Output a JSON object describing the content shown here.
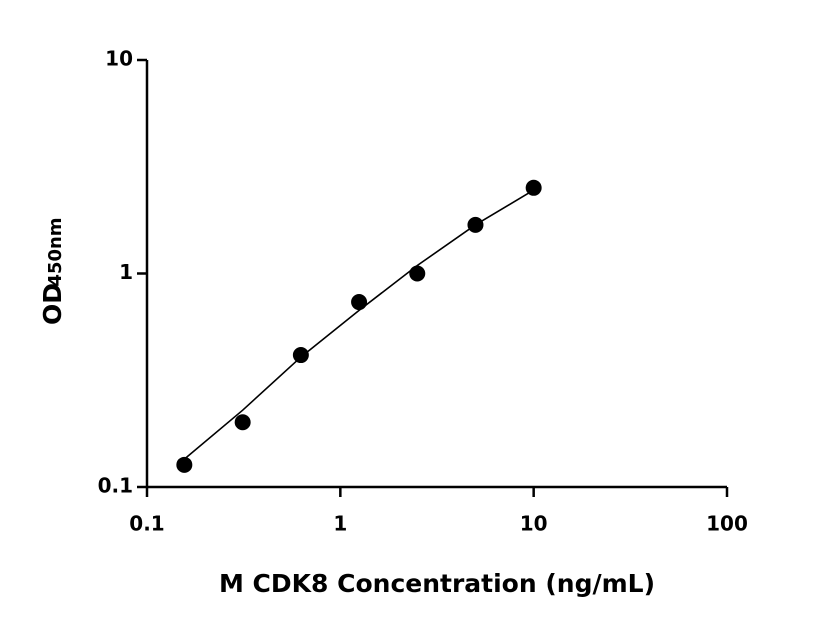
{
  "chart_data": {
    "type": "scatter",
    "x_label": "M CDK8 Concentration (ng/mL)",
    "y_label": "OD",
    "y_label_sub": "450nm",
    "x": [
      0.156,
      0.3125,
      0.625,
      1.25,
      2.5,
      5,
      10
    ],
    "values": [
      0.127,
      0.201,
      0.415,
      0.735,
      1.0,
      1.69,
      2.52
    ],
    "color": "#000000",
    "fit": {
      "x": [
        0.156,
        0.3125,
        0.625,
        1.25,
        2.5,
        5,
        10
      ],
      "values": [
        0.135,
        0.229,
        0.406,
        0.672,
        1.09,
        1.69,
        2.46
      ]
    },
    "xlim": [
      0.1,
      100
    ],
    "ylim": [
      0.1,
      10
    ],
    "xticks": [
      0.1,
      1,
      10,
      100
    ],
    "yticks": [
      0.1,
      1,
      10
    ],
    "log_x": true,
    "log_y": true,
    "grid": false
  }
}
